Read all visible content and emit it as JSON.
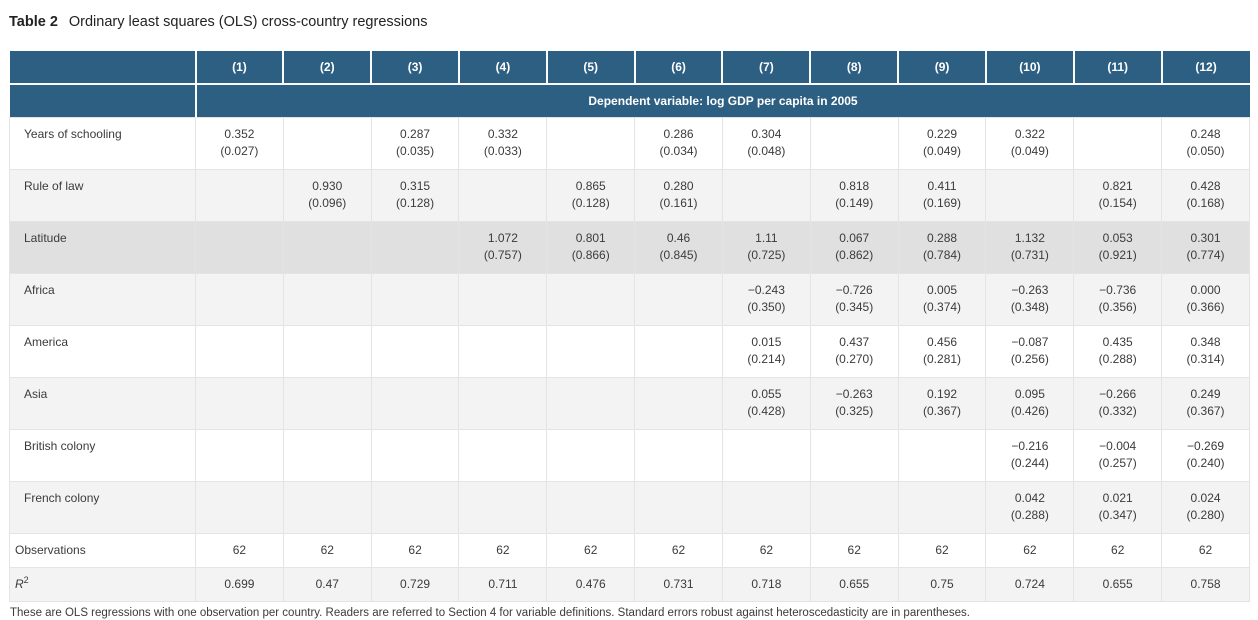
{
  "title": {
    "label": "Table 2",
    "caption": "Ordinary least squares (OLS) cross-country regressions"
  },
  "colors": {
    "header_bg": "#2d5f82",
    "header_text": "#ffffff",
    "stripe_bg": "#f3f3f3",
    "highlight_bg": "#e0e0e0",
    "border": "#e4e4e4",
    "text": "#3b3b3b"
  },
  "table": {
    "column_headers": [
      "(1)",
      "(2)",
      "(3)",
      "(4)",
      "(5)",
      "(6)",
      "(7)",
      "(8)",
      "(9)",
      "(10)",
      "(11)",
      "(12)"
    ],
    "dependent_variable_header": "Dependent variable: log GDP per capita in 2005",
    "rows": [
      {
        "label": "Years of schooling",
        "cells": [
          {
            "coef": "0.352",
            "se": "(0.027)"
          },
          null,
          {
            "coef": "0.287",
            "se": "(0.035)"
          },
          {
            "coef": "0.332",
            "se": "(0.033)"
          },
          null,
          {
            "coef": "0.286",
            "se": "(0.034)"
          },
          {
            "coef": "0.304",
            "se": "(0.048)"
          },
          null,
          {
            "coef": "0.229",
            "se": "(0.049)"
          },
          {
            "coef": "0.322",
            "se": "(0.049)"
          },
          null,
          {
            "coef": "0.248",
            "se": "(0.050)"
          }
        ]
      },
      {
        "label": "Rule of law",
        "cells": [
          null,
          {
            "coef": "0.930",
            "se": "(0.096)"
          },
          {
            "coef": "0.315",
            "se": "(0.128)"
          },
          null,
          {
            "coef": "0.865",
            "se": "(0.128)"
          },
          {
            "coef": "0.280",
            "se": "(0.161)"
          },
          null,
          {
            "coef": "0.818",
            "se": "(0.149)"
          },
          {
            "coef": "0.411",
            "se": "(0.169)"
          },
          null,
          {
            "coef": "0.821",
            "se": "(0.154)"
          },
          {
            "coef": "0.428",
            "se": "(0.168)"
          }
        ]
      },
      {
        "label": "Latitude",
        "highlighted": true,
        "cells": [
          null,
          null,
          null,
          {
            "coef": "1.072",
            "se": "(0.757)"
          },
          {
            "coef": "0.801",
            "se": "(0.866)"
          },
          {
            "coef": "0.46",
            "se": "(0.845)"
          },
          {
            "coef": "1.11",
            "se": "(0.725)"
          },
          {
            "coef": "0.067",
            "se": "(0.862)"
          },
          {
            "coef": "0.288",
            "se": "(0.784)"
          },
          {
            "coef": "1.132",
            "se": "(0.731)"
          },
          {
            "coef": "0.053",
            "se": "(0.921)"
          },
          {
            "coef": "0.301",
            "se": "(0.774)"
          }
        ]
      },
      {
        "label": "Africa",
        "cells": [
          null,
          null,
          null,
          null,
          null,
          null,
          {
            "coef": "−0.243",
            "se": "(0.350)"
          },
          {
            "coef": "−0.726",
            "se": "(0.345)"
          },
          {
            "coef": "0.005",
            "se": "(0.374)"
          },
          {
            "coef": "−0.263",
            "se": "(0.348)"
          },
          {
            "coef": "−0.736",
            "se": "(0.356)"
          },
          {
            "coef": "0.000",
            "se": "(0.366)"
          }
        ]
      },
      {
        "label": "America",
        "cells": [
          null,
          null,
          null,
          null,
          null,
          null,
          {
            "coef": "0.015",
            "se": "(0.214)"
          },
          {
            "coef": "0.437",
            "se": "(0.270)"
          },
          {
            "coef": "0.456",
            "se": "(0.281)"
          },
          {
            "coef": "−0.087",
            "se": "(0.256)"
          },
          {
            "coef": "0.435",
            "se": "(0.288)"
          },
          {
            "coef": "0.348",
            "se": "(0.314)"
          }
        ]
      },
      {
        "label": "Asia",
        "cells": [
          null,
          null,
          null,
          null,
          null,
          null,
          {
            "coef": "0.055",
            "se": "(0.428)"
          },
          {
            "coef": "−0.263",
            "se": "(0.325)"
          },
          {
            "coef": "0.192",
            "se": "(0.367)"
          },
          {
            "coef": "0.095",
            "se": "(0.426)"
          },
          {
            "coef": "−0.266",
            "se": "(0.332)"
          },
          {
            "coef": "0.249",
            "se": "(0.367)"
          }
        ]
      },
      {
        "label": "British colony",
        "cells": [
          null,
          null,
          null,
          null,
          null,
          null,
          null,
          null,
          null,
          {
            "coef": "−0.216",
            "se": "(0.244)"
          },
          {
            "coef": "−0.004",
            "se": "(0.257)"
          },
          {
            "coef": "−0.269",
            "se": "(0.240)"
          }
        ]
      },
      {
        "label": "French colony",
        "cells": [
          null,
          null,
          null,
          null,
          null,
          null,
          null,
          null,
          null,
          {
            "coef": "0.042",
            "se": "(0.288)"
          },
          {
            "coef": "0.021",
            "se": "(0.347)"
          },
          {
            "coef": "0.024",
            "se": "(0.280)"
          }
        ]
      },
      {
        "label": "Observations",
        "single": true,
        "cells": [
          "62",
          "62",
          "62",
          "62",
          "62",
          "62",
          "62",
          "62",
          "62",
          "62",
          "62",
          "62"
        ]
      },
      {
        "label": "R",
        "label_sup": "2",
        "single": true,
        "cells": [
          "0.699",
          "0.47",
          "0.729",
          "0.711",
          "0.476",
          "0.731",
          "0.718",
          "0.655",
          "0.75",
          "0.724",
          "0.655",
          "0.758"
        ]
      }
    ]
  },
  "footnote": "These are OLS regressions with one observation per country. Readers are referred to Section 4 for variable definitions. Standard errors robust against heteroscedasticity are in parentheses."
}
